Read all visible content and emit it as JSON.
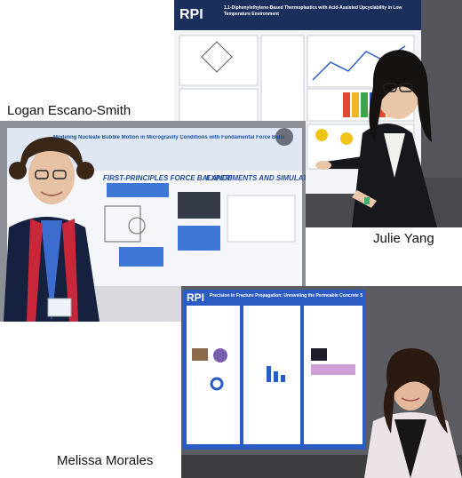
{
  "people": [
    {
      "name": "Logan Escano-Smith"
    },
    {
      "name": "Julie Yang"
    },
    {
      "name": "Melissa Morales"
    }
  ],
  "posters": {
    "julie": {
      "logo": "RPI",
      "title": "1,1-Diphenylethylene-Based Thermoplastics with Acid-Assisted Upcyclability in Low Temperature Environment"
    },
    "logan": {
      "title": "Modeling Nucleate Bubble Motion in Microgravity Conditions with Fundamental Force Balances",
      "sections": [
        "FIRST-PRINCIPLES FORCE BALANCE",
        "EXPERIMENTS AND SIMULATION"
      ]
    },
    "melissa": {
      "logo": "RPI",
      "title": "Precision in Fracture Propagation: Unraveling the Permeable Concrete Systems"
    }
  },
  "colors": {
    "poster_navy": "#1b2f5c",
    "poster_blue": "#2a5cc4",
    "lanyard_red": "#c8283a"
  }
}
